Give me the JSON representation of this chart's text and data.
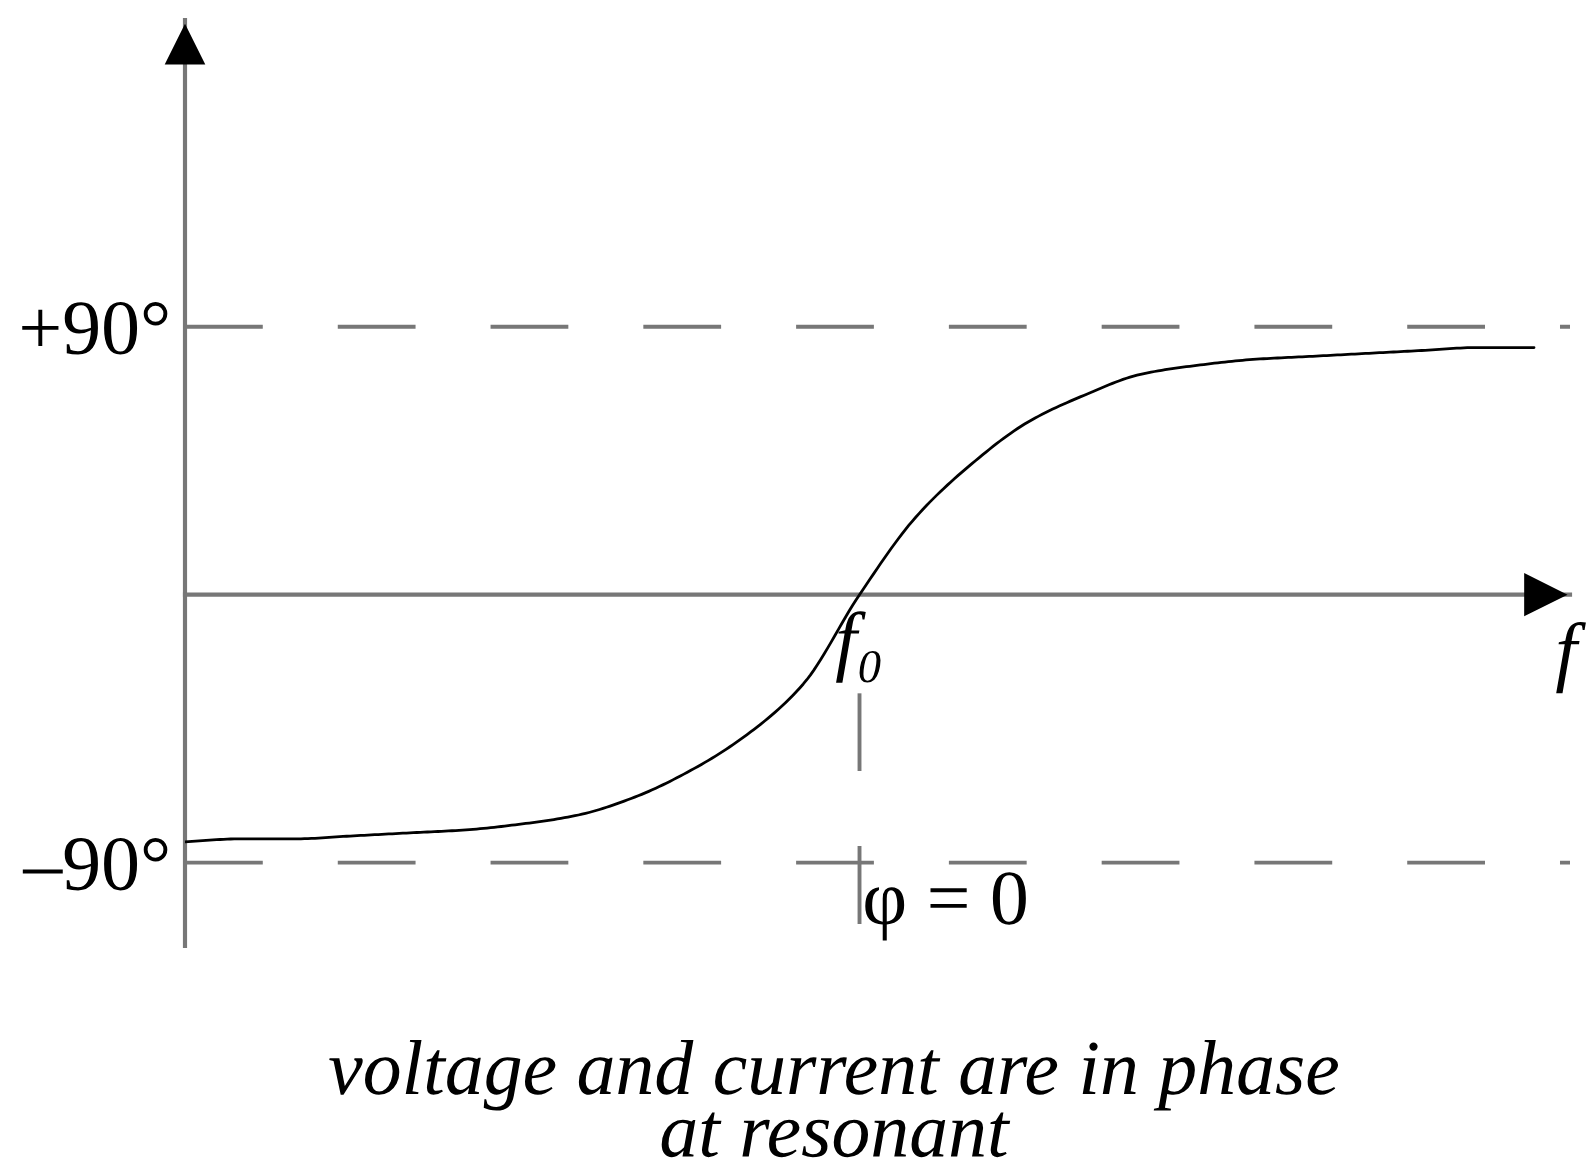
{
  "chart_data": {
    "type": "line",
    "xlabel": "f",
    "categories": [
      null,
      null,
      null,
      null,
      null,
      null,
      null,
      null,
      null,
      null,
      null,
      null,
      "f₀",
      null,
      null,
      null,
      null,
      null,
      null,
      null,
      null,
      null,
      null,
      null,
      null
    ],
    "series": [
      {
        "color": "#000000",
        "values": [
          -83,
          -82,
          -82,
          -81,
          -80,
          -79,
          -77,
          -74,
          -68,
          -59,
          -47,
          -30,
          0,
          26,
          44,
          58,
          67,
          74,
          77,
          79,
          80,
          81,
          82,
          83,
          83
        ]
      }
    ],
    "ylim": [
      -118,
      193
    ],
    "yticks": [
      {
        "value": 90,
        "label": "+90°"
      },
      {
        "value": -90,
        "label": "–90°"
      }
    ],
    "ref_lines": [
      {
        "axis": "y",
        "value": 90,
        "color": "#777777",
        "line_style": "dashed"
      },
      {
        "axis": "y",
        "value": -90,
        "color": "#777777",
        "line_style": "dashed"
      },
      {
        "axis": "x",
        "value": "f₀",
        "label": "φ = 0",
        "color": "#777777",
        "line_style": "dashed"
      }
    ],
    "annotations": [
      "voltage and current are in phase\nat resonant"
    ]
  }
}
